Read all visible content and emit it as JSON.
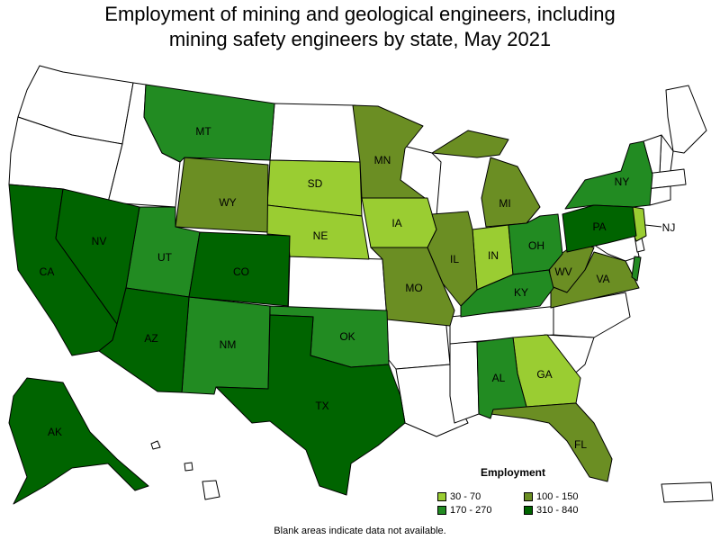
{
  "title_line1": "Employment of mining and geological engineers, including",
  "title_line2": "mining safety engineers by state, May 2021",
  "legend": {
    "title": "Employment",
    "items": [
      {
        "label": "30 - 70",
        "color": "#9acd32"
      },
      {
        "label": "100 - 150",
        "color": "#6b8e23"
      },
      {
        "label": "170 - 270",
        "color": "#228b22"
      },
      {
        "label": "310 - 840",
        "color": "#006400"
      }
    ]
  },
  "note": "Blank areas indicate data not available.",
  "states": {
    "AK": "AK",
    "AL": "AL",
    "AZ": "AZ",
    "CA": "CA",
    "CO": "CO",
    "FL": "FL",
    "GA": "GA",
    "IA": "IA",
    "IL": "IL",
    "IN": "IN",
    "KY": "KY",
    "MI": "MI",
    "MN": "MN",
    "MO": "MO",
    "MT": "MT",
    "NE": "NE",
    "NJ": "NJ",
    "NM": "NM",
    "NV": "NV",
    "NY": "NY",
    "OH": "OH",
    "OK": "OK",
    "PA": "PA",
    "SD": "SD",
    "TX": "TX",
    "UT": "UT",
    "VA": "VA",
    "WV": "WV",
    "WY": "WY"
  },
  "colors": {
    "no_data": "#ffffff",
    "c1": "#9acd32",
    "c2": "#6b8e23",
    "c3": "#228b22",
    "c4": "#006400"
  }
}
